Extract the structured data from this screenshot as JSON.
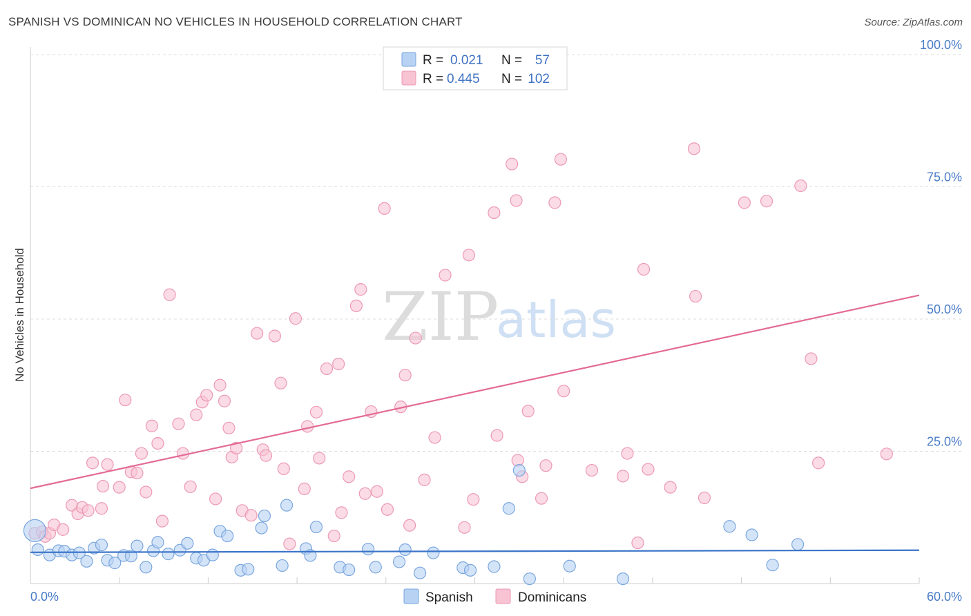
{
  "title": "SPANISH VS DOMINICAN NO VEHICLES IN HOUSEHOLD CORRELATION CHART",
  "source": "Source: ZipAtlas.com",
  "watermark": {
    "zip": "ZIP",
    "atlas": "atlas"
  },
  "colors": {
    "spanish_fill": "#b7d2f3",
    "spanish_stroke": "#7aa6de",
    "spanish_line": "#3a74c9",
    "dominican_fill": "#f8c3d3",
    "dominican_stroke": "#ec9ab4",
    "dominican_line": "#e36a96",
    "grid": "#dddddd",
    "axis_text": "#4a7cc7"
  },
  "legend": {
    "rows": [
      {
        "r_label": "R =",
        "r_value": "0.021",
        "n_label": "N =",
        "n_value": "57"
      },
      {
        "r_label": "R =",
        "r_value": "0.445",
        "n_label": "N =",
        "n_value": "102"
      }
    ]
  },
  "bottom_legend": {
    "spanish": "Spanish",
    "dominicans": "Dominicans"
  },
  "chart_data": {
    "type": "scatter",
    "xlabel": "",
    "ylabel": "No Vehicles in Household",
    "xlim": [
      0,
      60
    ],
    "ylim": [
      0,
      100
    ],
    "x_tick_labels": [
      "0.0%",
      "60.0%"
    ],
    "y_ticks": [
      25,
      50,
      75,
      100
    ],
    "y_tick_labels": [
      "25.0%",
      "50.0%",
      "75.0%",
      "100.0%"
    ],
    "series": [
      {
        "name": "Spanish",
        "R": 0.021,
        "N": 57,
        "trend": {
          "x0": 0,
          "y0": 5.9,
          "x1": 60,
          "y1": 6.3
        },
        "points": [
          [
            0.3,
            10.0
          ],
          [
            0.5,
            6.4
          ],
          [
            1.3,
            5.4
          ],
          [
            1.9,
            6.2
          ],
          [
            2.3,
            6.1
          ],
          [
            2.8,
            5.4
          ],
          [
            3.3,
            5.8
          ],
          [
            3.8,
            4.2
          ],
          [
            4.3,
            6.7
          ],
          [
            4.8,
            7.3
          ],
          [
            5.2,
            4.4
          ],
          [
            5.7,
            3.9
          ],
          [
            6.3,
            5.3
          ],
          [
            6.8,
            5.2
          ],
          [
            7.2,
            7.1
          ],
          [
            7.8,
            3.1
          ],
          [
            8.3,
            6.2
          ],
          [
            8.6,
            7.8
          ],
          [
            9.3,
            5.6
          ],
          [
            10.1,
            6.3
          ],
          [
            10.6,
            7.6
          ],
          [
            11.2,
            4.8
          ],
          [
            11.7,
            4.4
          ],
          [
            12.3,
            5.4
          ],
          [
            12.8,
            9.9
          ],
          [
            13.3,
            9.0
          ],
          [
            14.2,
            2.5
          ],
          [
            14.7,
            2.7
          ],
          [
            15.6,
            10.5
          ],
          [
            15.8,
            12.8
          ],
          [
            17.0,
            3.4
          ],
          [
            17.3,
            14.8
          ],
          [
            18.6,
            6.6
          ],
          [
            18.9,
            5.3
          ],
          [
            19.3,
            10.7
          ],
          [
            20.9,
            3.1
          ],
          [
            21.5,
            2.6
          ],
          [
            22.8,
            6.5
          ],
          [
            23.3,
            3.1
          ],
          [
            24.9,
            4.1
          ],
          [
            25.3,
            6.4
          ],
          [
            26.3,
            2.0
          ],
          [
            27.2,
            5.8
          ],
          [
            29.2,
            3.0
          ],
          [
            29.7,
            2.5
          ],
          [
            31.3,
            3.2
          ],
          [
            32.3,
            14.2
          ],
          [
            33.0,
            21.4
          ],
          [
            33.7,
            0.9
          ],
          [
            36.4,
            3.3
          ],
          [
            40.0,
            0.9
          ],
          [
            47.2,
            10.8
          ],
          [
            48.7,
            9.2
          ],
          [
            50.1,
            3.5
          ],
          [
            51.8,
            7.4
          ]
        ]
      },
      {
        "name": "Dominicans",
        "R": 0.445,
        "N": 102,
        "trend": {
          "x0": 0,
          "y0": 18.0,
          "x1": 60,
          "y1": 54.5
        },
        "points": [
          [
            0.3,
            9.5
          ],
          [
            0.8,
            9.8
          ],
          [
            1.0,
            8.9
          ],
          [
            1.3,
            9.5
          ],
          [
            1.6,
            11.1
          ],
          [
            2.2,
            10.2
          ],
          [
            2.8,
            14.8
          ],
          [
            3.2,
            13.2
          ],
          [
            3.5,
            14.4
          ],
          [
            3.9,
            13.8
          ],
          [
            4.2,
            22.8
          ],
          [
            4.8,
            14.2
          ],
          [
            4.9,
            18.4
          ],
          [
            5.2,
            22.5
          ],
          [
            6.0,
            18.2
          ],
          [
            6.4,
            34.7
          ],
          [
            6.8,
            21.1
          ],
          [
            7.2,
            20.9
          ],
          [
            7.5,
            24.6
          ],
          [
            7.8,
            17.3
          ],
          [
            8.2,
            29.8
          ],
          [
            8.6,
            26.5
          ],
          [
            8.9,
            11.8
          ],
          [
            9.4,
            54.6
          ],
          [
            10.0,
            30.2
          ],
          [
            10.3,
            24.6
          ],
          [
            10.8,
            18.3
          ],
          [
            11.2,
            31.9
          ],
          [
            11.6,
            34.3
          ],
          [
            11.9,
            35.6
          ],
          [
            12.5,
            16.0
          ],
          [
            12.8,
            37.5
          ],
          [
            13.1,
            34.5
          ],
          [
            13.4,
            29.4
          ],
          [
            13.6,
            23.9
          ],
          [
            13.9,
            25.6
          ],
          [
            14.3,
            13.8
          ],
          [
            14.9,
            12.9
          ],
          [
            15.3,
            47.3
          ],
          [
            15.7,
            25.3
          ],
          [
            15.9,
            24.2
          ],
          [
            16.5,
            46.8
          ],
          [
            16.9,
            37.9
          ],
          [
            17.1,
            21.7
          ],
          [
            17.5,
            7.5
          ],
          [
            17.9,
            50.1
          ],
          [
            18.5,
            17.9
          ],
          [
            18.7,
            29.7
          ],
          [
            19.3,
            32.4
          ],
          [
            19.5,
            23.7
          ],
          [
            20.0,
            40.6
          ],
          [
            20.5,
            9.0
          ],
          [
            20.8,
            41.5
          ],
          [
            21.0,
            13.4
          ],
          [
            21.5,
            20.2
          ],
          [
            22.0,
            52.5
          ],
          [
            22.3,
            55.6
          ],
          [
            22.6,
            17.0
          ],
          [
            23.0,
            32.5
          ],
          [
            23.4,
            17.4
          ],
          [
            23.9,
            70.9
          ],
          [
            24.1,
            14.0
          ],
          [
            25.0,
            33.4
          ],
          [
            25.3,
            39.4
          ],
          [
            25.6,
            11.0
          ],
          [
            26.0,
            46.4
          ],
          [
            26.6,
            19.6
          ],
          [
            27.3,
            27.6
          ],
          [
            28.0,
            58.3
          ],
          [
            29.3,
            10.6
          ],
          [
            29.6,
            62.1
          ],
          [
            29.9,
            15.9
          ],
          [
            31.3,
            70.1
          ],
          [
            31.5,
            28.0
          ],
          [
            32.5,
            79.3
          ],
          [
            32.8,
            72.4
          ],
          [
            32.9,
            23.3
          ],
          [
            33.2,
            20.2
          ],
          [
            33.6,
            32.6
          ],
          [
            34.5,
            16.1
          ],
          [
            34.8,
            22.3
          ],
          [
            35.4,
            72.0
          ],
          [
            35.8,
            80.2
          ],
          [
            36.0,
            36.4
          ],
          [
            37.9,
            21.4
          ],
          [
            40.0,
            20.3
          ],
          [
            40.3,
            24.6
          ],
          [
            41.0,
            7.7
          ],
          [
            41.4,
            59.4
          ],
          [
            41.7,
            21.6
          ],
          [
            43.2,
            18.2
          ],
          [
            44.8,
            82.2
          ],
          [
            44.9,
            54.3
          ],
          [
            45.5,
            16.2
          ],
          [
            48.2,
            72.0
          ],
          [
            49.7,
            72.3
          ],
          [
            52.0,
            75.2
          ],
          [
            52.7,
            42.5
          ],
          [
            53.2,
            22.8
          ],
          [
            57.8,
            24.5
          ]
        ]
      }
    ]
  }
}
